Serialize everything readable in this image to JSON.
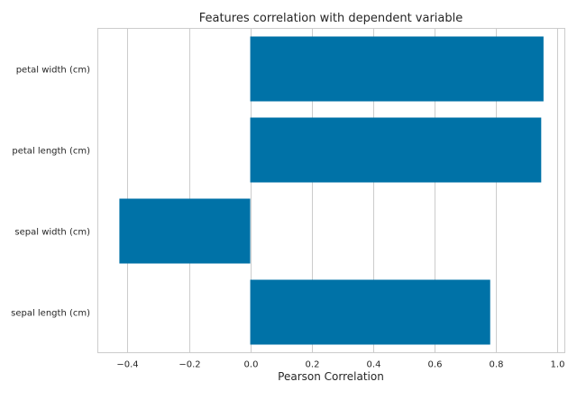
{
  "chart_data": {
    "type": "bar",
    "orientation": "horizontal",
    "title": "Features correlation with dependent variable",
    "xlabel": "Pearson Correlation",
    "ylabel": "",
    "categories": [
      "sepal length (cm)",
      "sepal width (cm)",
      "petal length (cm)",
      "petal width (cm)"
    ],
    "values": [
      0.7826,
      -0.4267,
      0.949,
      0.9565
    ],
    "xlim": [
      -0.497,
      1.026
    ],
    "xticks": [
      -0.4,
      -0.2,
      0.0,
      0.2,
      0.4,
      0.6,
      0.8,
      1.0
    ],
    "xtick_labels": [
      "−0.4",
      "−0.2",
      "0.0",
      "0.2",
      "0.4",
      "0.6",
      "0.8",
      "1.0"
    ],
    "grid": true,
    "bar_color": "#0072a7",
    "grid_color": "#cccccc"
  }
}
